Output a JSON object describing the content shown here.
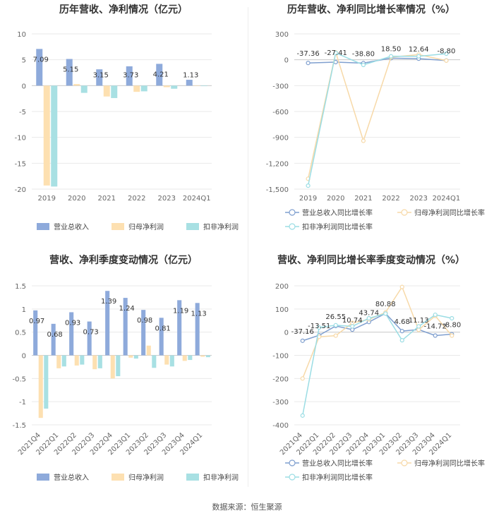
{
  "source": "数据来源：恒生聚源",
  "colors": {
    "revenue": "#8eaadb",
    "net_profit": "#fde0b1",
    "deducted_profit": "#a8e0e3",
    "revenue_line": "#7f9fcf",
    "net_line": "#f7d9a8",
    "deducted_line": "#9bdde4",
    "grid": "#e9e9e9",
    "axis_text": "#666666"
  },
  "chart_data": [
    {
      "id": "annual_values",
      "type": "bar",
      "title": "历年营收、净利情况（亿元）",
      "categories": [
        "2019",
        "2020",
        "2021",
        "2022",
        "2023",
        "2024Q1"
      ],
      "ylim": [
        -20,
        10
      ],
      "yticks": [
        "10",
        "5",
        "0",
        "-5",
        "-10",
        "-15",
        "-20"
      ],
      "grid": true,
      "legend_position": "bottom",
      "series": [
        {
          "name": "营业总收入",
          "values": [
            7.09,
            5.15,
            3.15,
            3.73,
            4.21,
            1.13
          ],
          "labels": [
            "7.09",
            "5.15",
            "3.15",
            "3.73",
            "4.21",
            "1.13"
          ]
        },
        {
          "name": "归母净利润",
          "values": [
            -19.3,
            0.3,
            -2.1,
            -1.2,
            -0.3,
            -0.05
          ]
        },
        {
          "name": "扣非净利润",
          "values": [
            -19.5,
            -1.4,
            -2.4,
            -1.1,
            -0.6,
            -0.1
          ]
        }
      ]
    },
    {
      "id": "annual_growth",
      "type": "line",
      "title": "历年营收、净利同比增长率情况（%）",
      "categories": [
        "2019",
        "2020",
        "2021",
        "2022",
        "2023",
        "2024Q1"
      ],
      "ylim": [
        -1500,
        300
      ],
      "yticks": [
        "300",
        "0",
        "-300",
        "-600",
        "-900",
        "-1,200",
        "-1,500"
      ],
      "grid": true,
      "legend_position": "bottom",
      "series": [
        {
          "name": "营业总收入同比增长率",
          "values": [
            -37.36,
            -27.41,
            -38.8,
            18.5,
            12.64,
            -8.8
          ],
          "labels": [
            "-37.36",
            "-27.41",
            "-38.80",
            "18.50",
            "12.64",
            "-8.80"
          ]
        },
        {
          "name": "归母净利润同比增长率",
          "values": [
            -1380,
            85,
            -940,
            30,
            60,
            -10
          ]
        },
        {
          "name": "扣非净利润同比增长率",
          "values": [
            -1460,
            80,
            -60,
            40,
            40,
            70
          ]
        }
      ]
    },
    {
      "id": "quarterly_values",
      "type": "bar",
      "title": "营收、净利季度变动情况（亿元）",
      "categories": [
        "2021Q4",
        "2022Q1",
        "2022Q2",
        "2022Q3",
        "2022Q4",
        "2023Q1",
        "2023Q2",
        "2023Q3",
        "2023Q4",
        "2024Q1"
      ],
      "ylim": [
        -1.5,
        1.5
      ],
      "yticks": [
        "1.5",
        "1",
        "0.5",
        "0",
        "-0.5",
        "-1",
        "-1.5"
      ],
      "grid": true,
      "legend_position": "bottom",
      "series": [
        {
          "name": "营业总收入",
          "values": [
            0.97,
            0.68,
            0.93,
            0.73,
            1.39,
            1.24,
            0.98,
            0.81,
            1.19,
            1.13
          ],
          "labels": [
            "0.97",
            "0.68",
            "0.93",
            "0.73",
            "1.39",
            "1.24",
            "0.98",
            "0.81",
            "1.19",
            "1.13"
          ]
        },
        {
          "name": "归母净利润",
          "values": [
            -1.35,
            -0.28,
            -0.22,
            -0.3,
            -0.5,
            -0.05,
            0.21,
            -0.2,
            -0.12,
            -0.03
          ]
        },
        {
          "name": "扣非净利润",
          "values": [
            -1.15,
            -0.24,
            -0.2,
            -0.28,
            -0.45,
            -0.07,
            -0.27,
            -0.24,
            -0.1,
            -0.04
          ]
        }
      ]
    },
    {
      "id": "quarterly_growth",
      "type": "line",
      "title": "营收、净利同比增长率季度变动情况（%）",
      "categories": [
        "2021Q4",
        "2022Q1",
        "2022Q2",
        "2022Q3",
        "2022Q4",
        "2023Q1",
        "2023Q2",
        "2023Q3",
        "2023Q4",
        "2024Q1"
      ],
      "ylim": [
        -400,
        200
      ],
      "yticks": [
        "200",
        "100",
        "0",
        "-100",
        "-200",
        "-300",
        "-400"
      ],
      "grid": true,
      "legend_position": "bottom",
      "series": [
        {
          "name": "营业总收入同比增长率",
          "values": [
            -37.16,
            -13.51,
            26.55,
            10.74,
            43.74,
            80.88,
            4.68,
            11.13,
            -14.72,
            -8.8
          ],
          "labels": [
            "-37.16",
            "-13.51",
            "26.55",
            "10.74",
            "43.74",
            "80.88",
            "4.68",
            "11.13",
            "-14.72",
            "-8.80"
          ]
        },
        {
          "name": "归母净利润同比增长率",
          "values": [
            -200,
            -20,
            -15,
            40,
            55,
            85,
            195,
            10,
            70,
            -15
          ]
        },
        {
          "name": "扣非净利润同比增长率",
          "values": [
            -360,
            20,
            30,
            25,
            60,
            80,
            -35,
            25,
            75,
            60
          ]
        }
      ]
    }
  ]
}
